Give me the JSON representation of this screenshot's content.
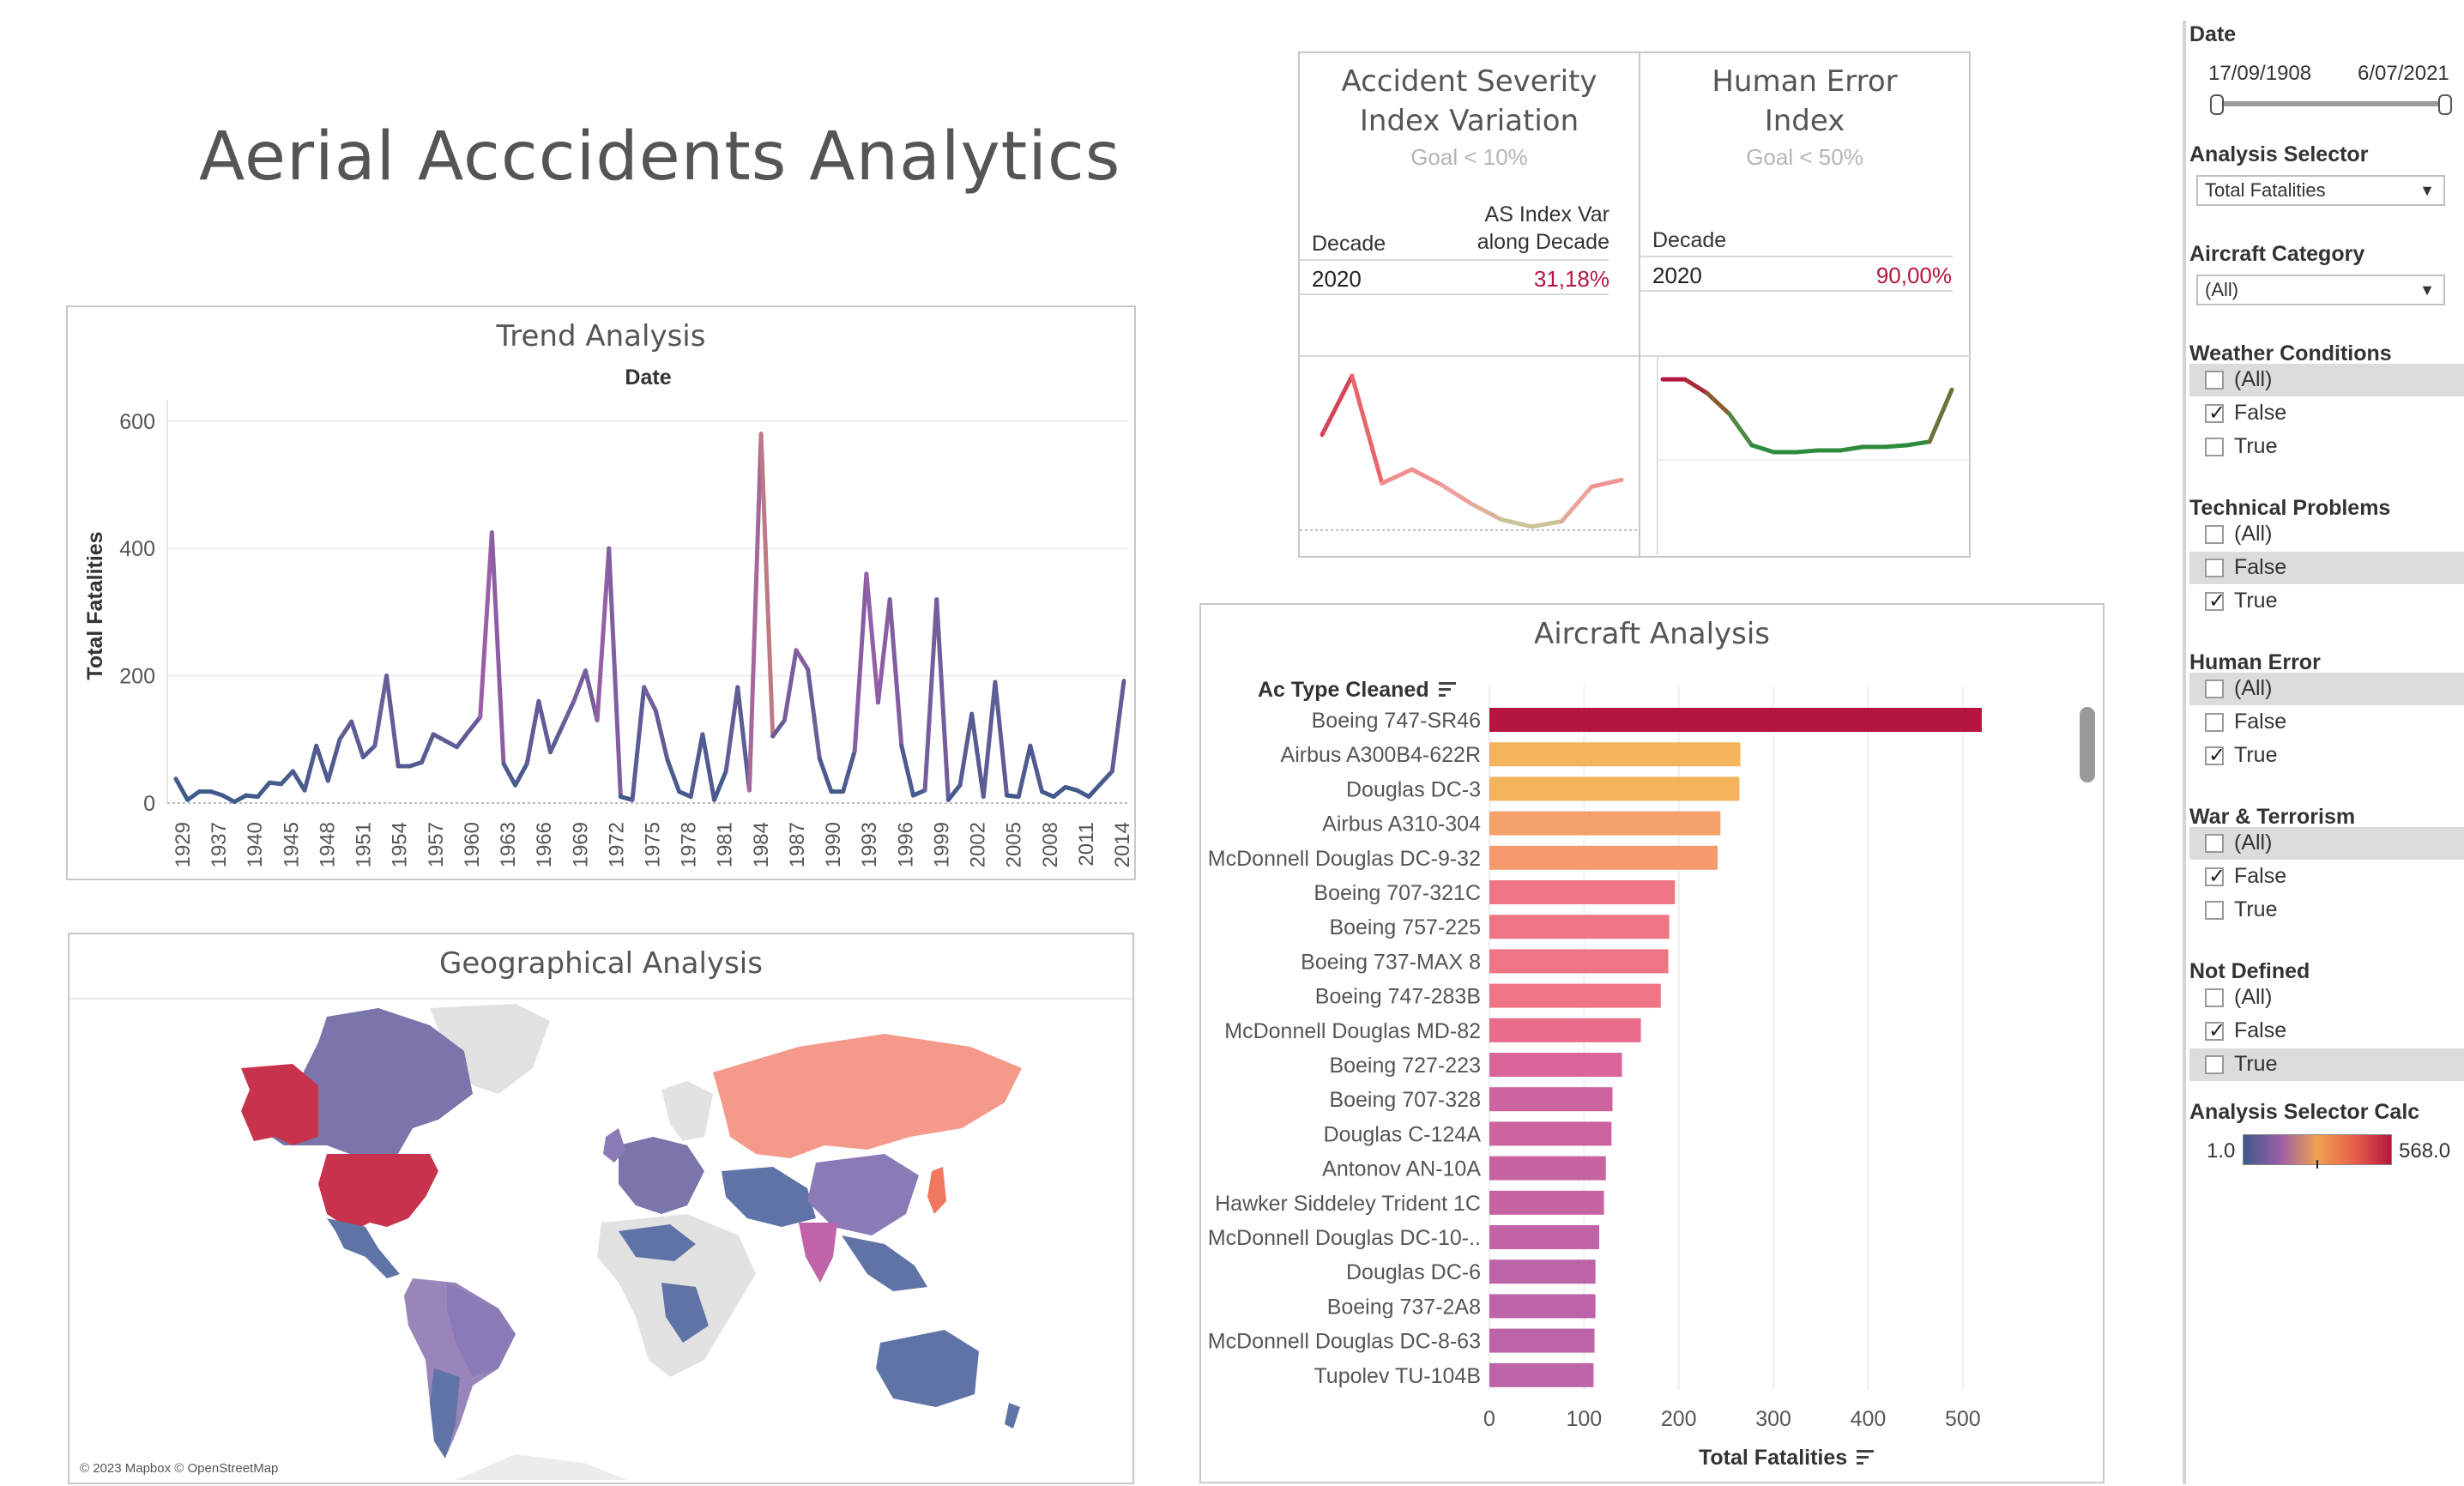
{
  "dashboard": {
    "title": "Aerial Acccidents Analytics"
  },
  "trend": {
    "title": "Trend Analysis",
    "column_header": "Date",
    "ylabel": "Total Fatalities"
  },
  "kpi_severity": {
    "title_line1": "Accident Severity",
    "title_line2": "Index Variation",
    "goal": "Goal < 10%",
    "col1_header": "Decade",
    "col2_header_line1": "AS Index Var",
    "col2_header_line2": "along Decade",
    "decade": "2020",
    "value": "31,18%"
  },
  "kpi_human": {
    "title_line1": "Human Error",
    "title_line2": "Index",
    "goal": "Goal < 50%",
    "col1_header": "Decade",
    "decade": "2020",
    "value": "90,00%"
  },
  "geo": {
    "title": "Geographical Analysis",
    "attribution": "© 2023 Mapbox © OpenStreetMap"
  },
  "aircraft": {
    "title": "Aircraft Analysis",
    "column_header": "Ac Type Cleaned"
  },
  "sidebar": {
    "date": {
      "title": "Date",
      "start": "17/09/1908",
      "end": "6/07/2021"
    },
    "analysis_selector": {
      "title": "Analysis Selector",
      "value": "Total Fatalities"
    },
    "aircraft_category": {
      "title": "Aircraft Category",
      "value": "(All)"
    },
    "weather": {
      "title": "Weather Conditions",
      "options": [
        "(All)",
        "False",
        "True"
      ],
      "checked": [
        false,
        true,
        false
      ]
    },
    "technical": {
      "title": "Technical Problems",
      "options": [
        "(All)",
        "False",
        "True"
      ],
      "checked": [
        false,
        false,
        true
      ]
    },
    "human": {
      "title": "Human Error",
      "options": [
        "(All)",
        "False",
        "True"
      ],
      "checked": [
        false,
        false,
        true
      ]
    },
    "war": {
      "title": "War & Terrorism",
      "options": [
        "(All)",
        "False",
        "True"
      ],
      "checked": [
        false,
        true,
        false
      ]
    },
    "notdefined": {
      "title": "Not Defined",
      "options": [
        "(All)",
        "False",
        "True"
      ],
      "checked": [
        false,
        true,
        false
      ]
    },
    "calc": {
      "title": "Analysis Selector Calc",
      "min": "1.0",
      "max": "568.0"
    }
  },
  "colors": {
    "low": "#3d5a8a",
    "mid": "#9a5fa8",
    "orange": "#f0a050",
    "high": "#b5163f",
    "green": "#2e8b3e"
  },
  "chart_data": [
    {
      "type": "line",
      "title": "Trend Analysis",
      "column_header": "Date",
      "ylabel": "Total Fatalities",
      "ylim": [
        0,
        620
      ],
      "yticks": [
        0,
        200,
        400,
        600
      ],
      "xtick_labels": [
        "1929",
        "1937",
        "1940",
        "1945",
        "1948",
        "1951",
        "1954",
        "1957",
        "1960",
        "1963",
        "1966",
        "1969",
        "1972",
        "1975",
        "1978",
        "1981",
        "1984",
        "1987",
        "1990",
        "1993",
        "1996",
        "1999",
        "2002",
        "2005",
        "2008",
        "2011",
        "2014"
      ],
      "values": [
        38,
        5,
        18,
        18,
        12,
        2,
        12,
        10,
        32,
        30,
        50,
        20,
        90,
        35,
        100,
        128,
        72,
        90,
        200,
        58,
        58,
        64,
        108,
        98,
        88,
        112,
        135,
        425,
        62,
        28,
        62,
        160,
        80,
        120,
        160,
        208,
        130,
        400,
        10,
        5,
        182,
        145,
        68,
        18,
        10,
        108,
        5,
        50,
        182,
        20,
        580,
        105,
        130,
        240,
        210,
        70,
        18,
        18,
        82,
        360,
        158,
        320,
        90,
        12,
        20,
        320,
        5,
        28,
        140,
        10,
        190,
        12,
        10,
        90,
        18,
        10,
        25,
        20,
        10,
        30,
        50,
        192
      ],
      "color_scale": "#3d5a8a -> #9a5fa8 -> #f0a050 -> #b5163f"
    },
    {
      "type": "line",
      "title": "Accident Severity Index Variation",
      "values": [
        0.62,
        0.96,
        0.34,
        0.42,
        0.33,
        0.22,
        0.13,
        0.09,
        0.12,
        0.32,
        0.36
      ]
    },
    {
      "type": "line",
      "title": "Human Error Index",
      "values": [
        0.94,
        0.94,
        0.86,
        0.74,
        0.56,
        0.52,
        0.52,
        0.53,
        0.53,
        0.55,
        0.55,
        0.56,
        0.58,
        0.88
      ]
    },
    {
      "type": "bar",
      "title": "Aircraft Analysis",
      "xlabel": "Total Fatalities",
      "xlim": [
        0,
        540
      ],
      "xticks": [
        0,
        100,
        200,
        300,
        400,
        500
      ],
      "categories": [
        "Boeing 747-SR46",
        "Airbus A300B4-622R",
        "Douglas DC-3",
        "Airbus A310-304",
        "McDonnell Douglas DC-9-32",
        "Boeing 707-321C",
        "Boeing 757-225",
        "Boeing 737-MAX 8",
        "Boeing 747-283B",
        "McDonnell Douglas MD-82",
        "Boeing 727-223",
        "Boeing 707-328",
        "Douglas C-124A",
        "Antonov AN-10A",
        "Hawker Siddeley Trident 1C",
        "McDonnell Douglas DC-10-..",
        "Douglas DC-6",
        "Boeing 737-2A8",
        "McDonnell Douglas DC-8-63",
        "Tupolev TU-104B"
      ],
      "values": [
        520,
        265,
        264,
        244,
        241,
        196,
        190,
        189,
        181,
        160,
        140,
        130,
        129,
        123,
        121,
        116,
        112,
        112,
        111,
        110
      ],
      "colors": [
        "#b5163f",
        "#f4b45c",
        "#f4b45c",
        "#f4a06a",
        "#f49a6c",
        "#ee7584",
        "#ee7584",
        "#ee7584",
        "#ee7584",
        "#e86b8c",
        "#d8669b",
        "#cc639f",
        "#cc639f",
        "#c863a2",
        "#c863a2",
        "#c263a5",
        "#bd63a8",
        "#bd63a8",
        "#bd63a8",
        "#bd63a8"
      ]
    }
  ]
}
